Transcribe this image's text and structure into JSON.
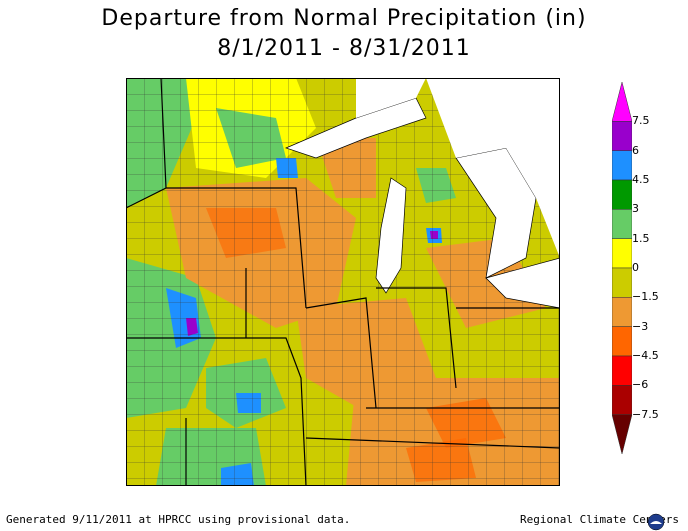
{
  "title": "Departure from Normal Precipitation (in)",
  "subtitle": "8/1/2011 - 8/31/2011",
  "legend": {
    "labels": [
      "7.5",
      "6",
      "4.5",
      "3",
      "1.5",
      "0",
      "−1.5",
      "−3",
      "−4.5",
      "−6",
      "−7.5"
    ],
    "colors": [
      "#ff00ff",
      "#9900cc",
      "#1e90ff",
      "#009900",
      "#66cc66",
      "#ffff00",
      "#cccc00",
      "#ee9933",
      "#ff6600",
      "#ff0000",
      "#aa0000",
      "#660000"
    ]
  },
  "map": {
    "lake_color": "#ffffff",
    "border_color": "#000000"
  },
  "footer": {
    "left": "Generated 9/11/2011 at HPRCC using provisional data.",
    "right": "Regional Climate Centers"
  }
}
